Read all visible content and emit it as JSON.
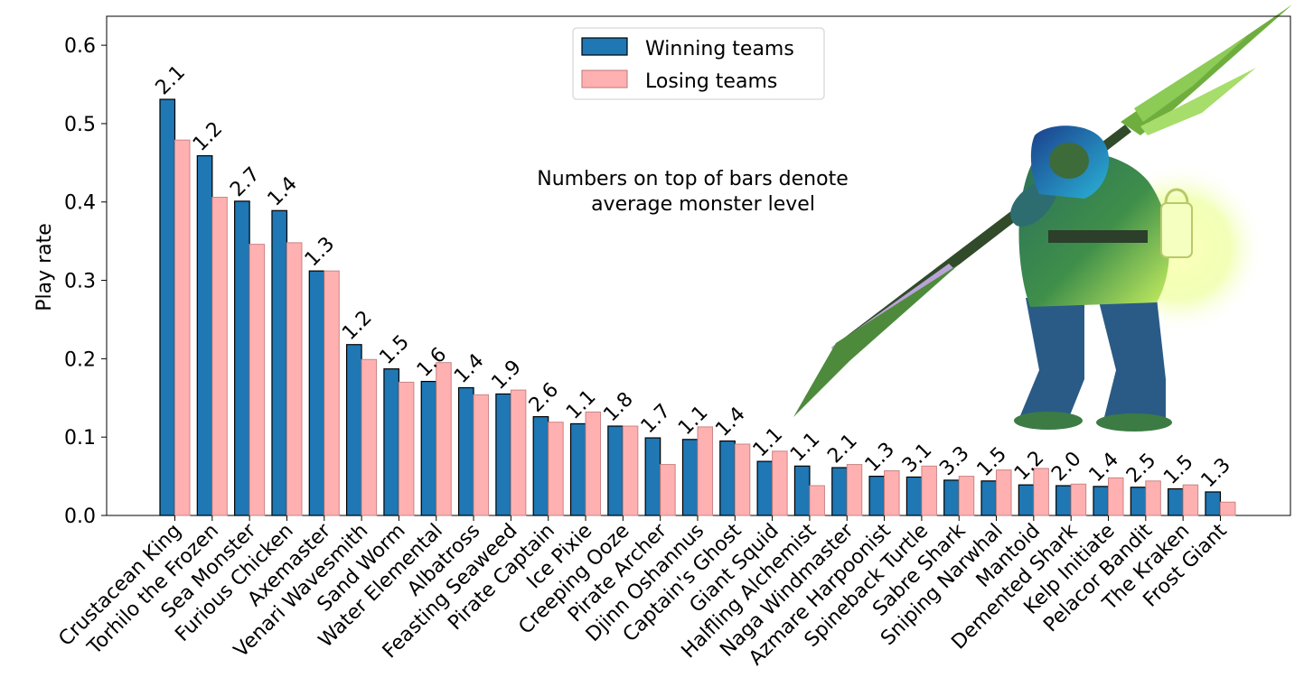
{
  "chart_data": {
    "type": "bar",
    "ylabel": "Play rate",
    "ylim": [
      0,
      0.637
    ],
    "yticks": [
      "0.0",
      "0.1",
      "0.2",
      "0.3",
      "0.4",
      "0.5",
      "0.6"
    ],
    "annotation": "Numbers on top of bars denote\naverage monster level",
    "legend_position": "top-center",
    "colors": {
      "winning": "#1f77b4",
      "losing": "#ffb1b1",
      "winning_edge": "#000000",
      "losing_edge": "#c98585"
    },
    "categories": [
      "Crustacean King",
      "Torhilo the Frozen",
      "Sea Monster",
      "Furious Chicken",
      "Axemaster",
      "Venari Wavesmith",
      "Sand Worm",
      "Water Elemental",
      "Albatross",
      "Feasting Seaweed",
      "Pirate Captain",
      "Ice Pixie",
      "Creeping Ooze",
      "Pirate Archer",
      "Djinn Oshannus",
      "Captain's Ghost",
      "Giant Squid",
      "Halfling Alchemist",
      "Naga Windmaster",
      "Azmare Harpoonist",
      "Spineback Turtle",
      "Sabre Shark",
      "Sniping Narwhal",
      "Mantoid",
      "Demented Shark",
      "Kelp Initiate",
      "Pelacor Bandit",
      "The Kraken",
      "Frost Giant"
    ],
    "series": [
      {
        "name": "Winning teams",
        "values": [
          0.531,
          0.459,
          0.401,
          0.389,
          0.312,
          0.218,
          0.187,
          0.171,
          0.163,
          0.155,
          0.126,
          0.117,
          0.114,
          0.099,
          0.097,
          0.095,
          0.069,
          0.063,
          0.061,
          0.05,
          0.049,
          0.045,
          0.044,
          0.039,
          0.038,
          0.037,
          0.036,
          0.034,
          0.03
        ]
      },
      {
        "name": "Losing teams",
        "values": [
          0.479,
          0.406,
          0.346,
          0.348,
          0.312,
          0.199,
          0.17,
          0.195,
          0.154,
          0.16,
          0.119,
          0.132,
          0.114,
          0.065,
          0.113,
          0.091,
          0.082,
          0.038,
          0.065,
          0.057,
          0.063,
          0.05,
          0.058,
          0.06,
          0.04,
          0.048,
          0.044,
          0.039,
          0.017
        ]
      }
    ],
    "bar_labels": [
      "2.1",
      "1.2",
      "2.7",
      "1.4",
      "1.3",
      "1.2",
      "1.5",
      "1.6",
      "1.4",
      "1.9",
      "2.6",
      "1.1",
      "1.8",
      "1.7",
      "1.1",
      "1.4",
      "1.1",
      "1.1",
      "2.1",
      "1.3",
      "3.1",
      "3.3",
      "1.5",
      "1.2",
      "2.0",
      "1.4",
      "2.5",
      "1.5",
      "1.3"
    ]
  }
}
